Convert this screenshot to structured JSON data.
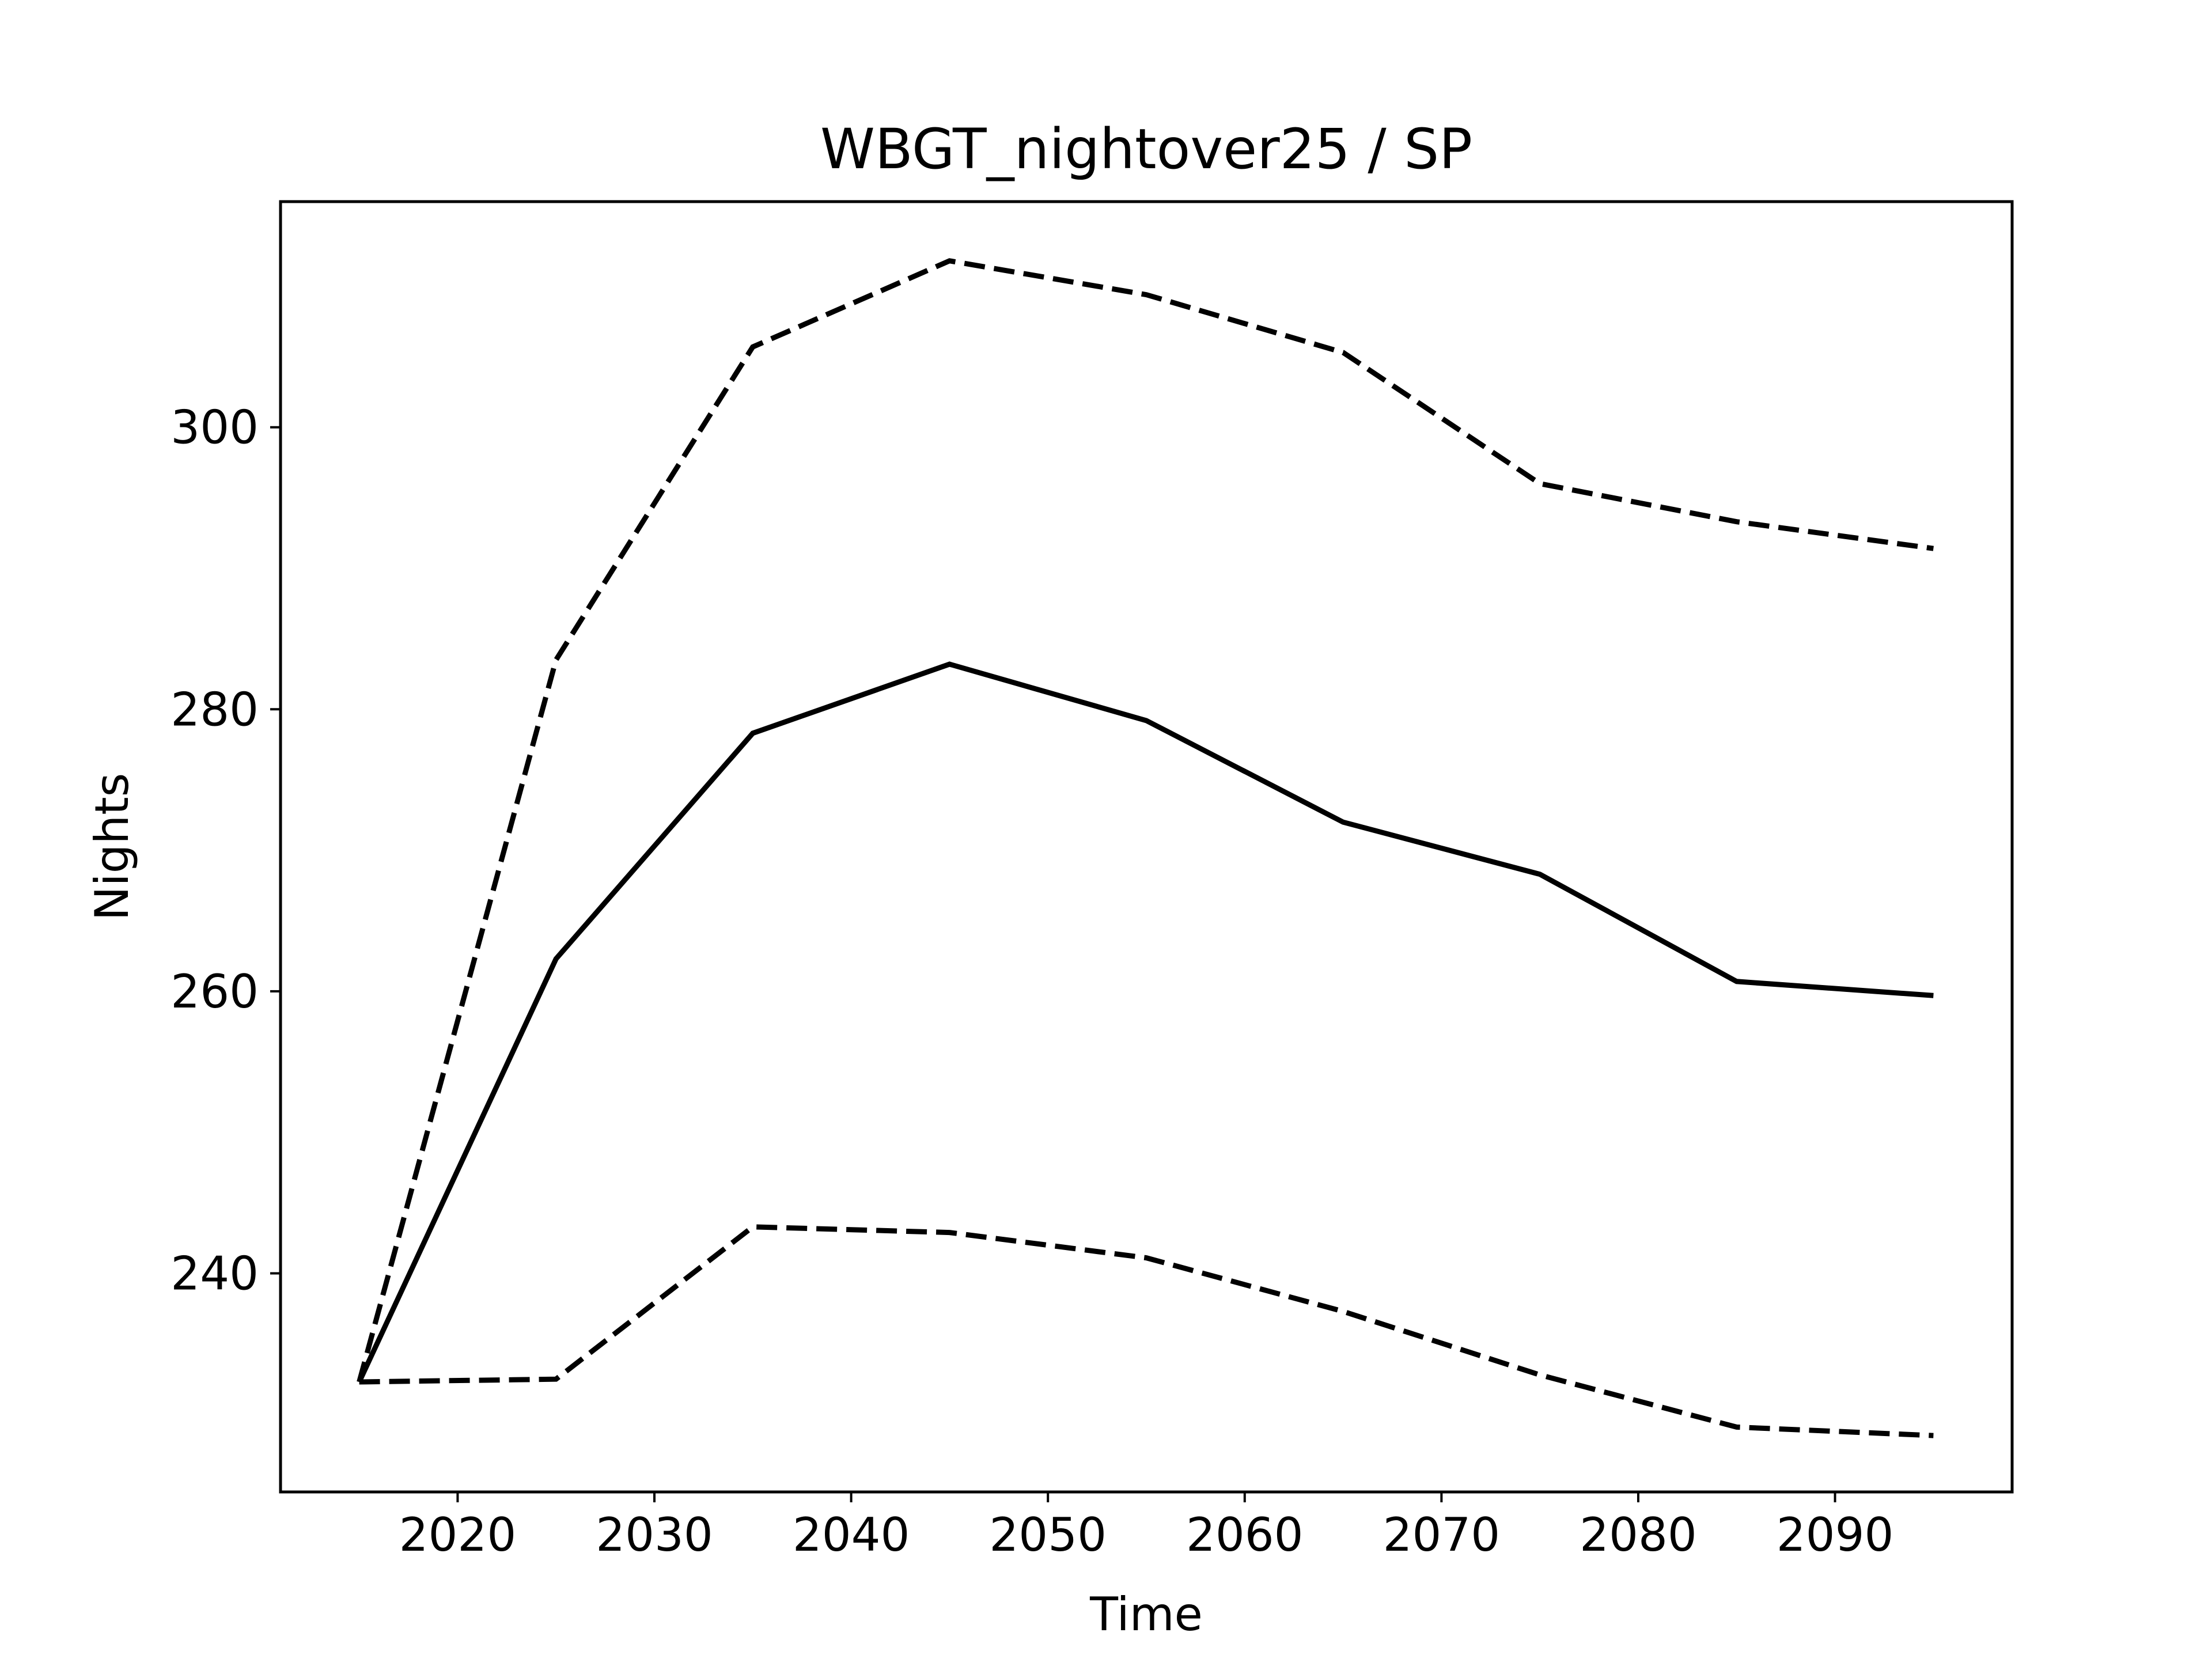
{
  "chart_data": {
    "type": "line",
    "title": "WBGT_nightover25 / SP",
    "xlabel": "Time",
    "ylabel": "Nights",
    "xlim": [
      2011,
      2099
    ],
    "ylim": [
      224.5,
      316
    ],
    "x_ticks": [
      2020,
      2030,
      2040,
      2050,
      2060,
      2070,
      2080,
      2090
    ],
    "y_ticks": [
      240,
      260,
      280,
      300
    ],
    "grid": false,
    "x": [
      2015,
      2025,
      2035,
      2045,
      2055,
      2065,
      2075,
      2085,
      2095
    ],
    "series": [
      {
        "style": "dashed",
        "color": "#000000",
        "values": [
          232.3,
          283.5,
          305.7,
          311.8,
          309.4,
          305.3,
          296.0,
          293.3,
          291.4
        ]
      },
      {
        "style": "solid",
        "color": "#000000",
        "values": [
          232.3,
          262.3,
          278.3,
          283.2,
          279.2,
          272.0,
          268.3,
          260.7,
          259.7
        ]
      },
      {
        "style": "dashed",
        "color": "#000000",
        "values": [
          232.3,
          232.5,
          243.3,
          242.9,
          241.1,
          237.3,
          232.8,
          229.1,
          228.5
        ]
      }
    ]
  }
}
